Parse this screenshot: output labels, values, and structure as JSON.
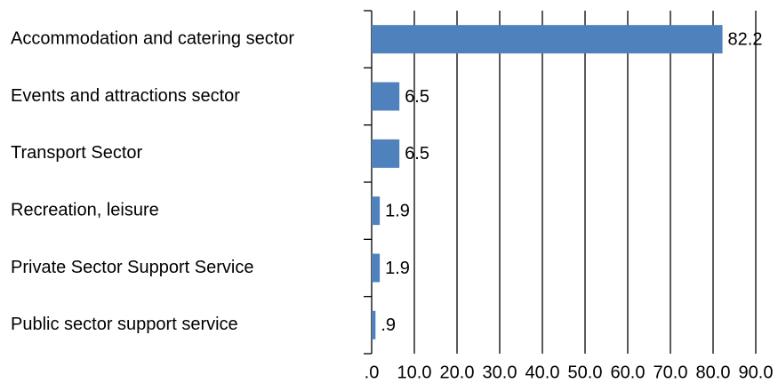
{
  "chart_data": {
    "type": "bar",
    "orientation": "horizontal",
    "categories": [
      "Accommodation and catering sector",
      "Events and attractions sector",
      "Transport Sector",
      "Recreation, leisure",
      "Private Sector Support Service",
      "Public sector support service"
    ],
    "values": [
      82.2,
      6.5,
      6.5,
      1.9,
      1.9,
      0.9
    ],
    "value_labels": [
      "82.2",
      "6.5",
      "6.5",
      "1.9",
      "1.9",
      ".9"
    ],
    "color": "#4f81bd",
    "xlim": [
      0,
      90
    ],
    "xticks": [
      {
        "value": 0,
        "label": ".0"
      },
      {
        "value": 10,
        "label": "10.0"
      },
      {
        "value": 20,
        "label": "20.0"
      },
      {
        "value": 30,
        "label": "30.0"
      },
      {
        "value": 40,
        "label": "40.0"
      },
      {
        "value": 50,
        "label": "50.0"
      },
      {
        "value": 60,
        "label": "60.0"
      },
      {
        "value": 70,
        "label": "70.0"
      },
      {
        "value": 80,
        "label": "80.0"
      },
      {
        "value": 90,
        "label": "90.0"
      }
    ],
    "grid": true
  }
}
